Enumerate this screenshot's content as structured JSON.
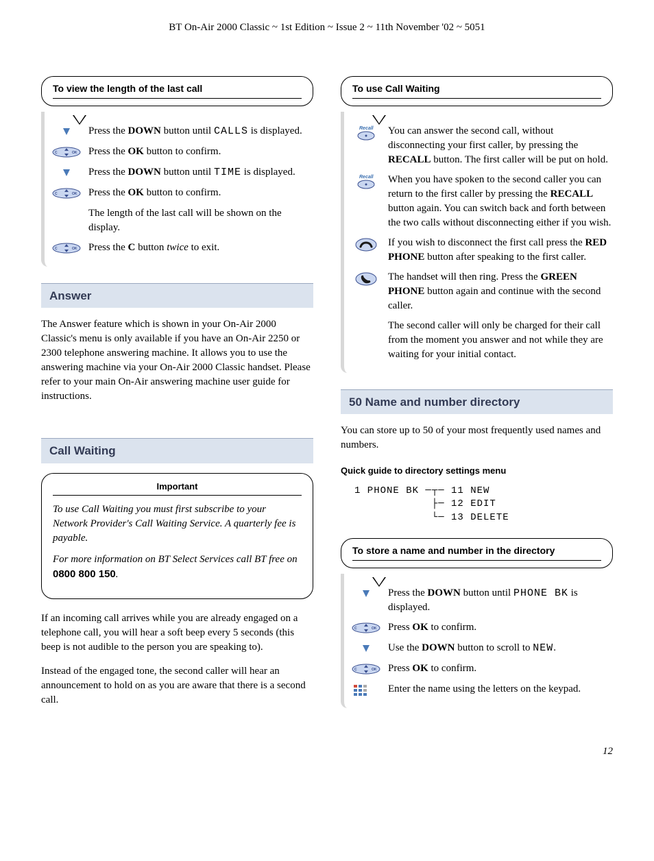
{
  "header": "BT On-Air 2000 Classic ~ 1st Edition ~ Issue 2 ~ 11th November '02 ~ 5051",
  "page_number": "12",
  "left": {
    "box1": {
      "title": "To view the length of the last call",
      "steps": [
        {
          "icon": "down",
          "pre": "Press the ",
          "bold": "DOWN",
          "mid": " button until ",
          "mono": "CALLS",
          "post": " is displayed."
        },
        {
          "icon": "ok",
          "pre": "Press the ",
          "bold": "OK",
          "mid": " button to confirm.",
          "mono": "",
          "post": ""
        },
        {
          "icon": "down",
          "pre": "Press the ",
          "bold": "DOWN",
          "mid": " button until ",
          "mono": "TIME",
          "post": " is displayed."
        },
        {
          "icon": "ok",
          "pre": "Press the ",
          "bold": "OK",
          "mid": " button to confirm.",
          "mono": "",
          "post": ""
        },
        {
          "icon": "none",
          "pre": "The length of the last call will be shown on the display.",
          "bold": "",
          "mid": "",
          "mono": "",
          "post": ""
        },
        {
          "icon": "ok",
          "pre": "Press the ",
          "bold": "C",
          "mid": " button ",
          "ital": "twice",
          "post": " to exit."
        }
      ]
    },
    "answer": {
      "heading": "Answer",
      "body": "The Answer feature which is shown in your On-Air 2000 Classic's menu is only available if you have an On-Air 2250 or 2300 telephone answering machine. It allows you to use the answering machine via your On-Air 2000 Classic handset. Please refer to your main On-Air answering machine user guide for instructions."
    },
    "cw": {
      "heading": "Call Waiting",
      "important_title": "Important",
      "important_p1": "To use Call Waiting you must first subscribe to your Network Provider's Call Waiting Service. A quarterly fee is payable.",
      "important_p2_pre": "For more information on BT Select Services call BT free on ",
      "important_phone": "0800 800 150",
      "important_p2_post": ".",
      "body1": "If an incoming call arrives while you are already engaged on a telephone call, you will hear a soft beep every 5 seconds (this beep is not audible to the person you are speaking to).",
      "body2": "Instead of the engaged tone, the second caller will hear an announcement to hold on as you are aware that there is a second call."
    }
  },
  "right": {
    "box1": {
      "title": "To use Call Waiting",
      "rows": [
        {
          "icon": "recall",
          "text_pre": "You can answer the second call, without disconnecting your first caller, by pressing the ",
          "bold": "RECALL",
          "text_post": " button. The first caller will be put on hold."
        },
        {
          "icon": "recall",
          "text_pre": "When you have spoken to the second caller you can return to the first caller by pressing the ",
          "bold": "RECALL",
          "text_post": " button again. You can switch back and forth between the two calls without disconnecting either if you wish."
        },
        {
          "icon": "red",
          "text_pre": "If you wish to disconnect the first call press the ",
          "bold": "RED PHONE",
          "text_post": " button after speaking to the first caller."
        },
        {
          "icon": "green",
          "text_pre": "The handset will then ring. Press the ",
          "bold": "GREEN PHONE",
          "text_post": " button again and continue with the second caller."
        },
        {
          "icon": "none",
          "text_pre": "The second caller will only be charged for their call from the moment you answer and not while they are waiting for your initial contact.",
          "bold": "",
          "text_post": ""
        }
      ]
    },
    "dir": {
      "heading": "50 Name and number directory",
      "intro": "You can store up to 50 of your most frequently used names and numbers.",
      "quick_title": "Quick guide to directory settings menu",
      "tree_root": "1 PHONE BK",
      "tree_items": [
        "11 NEW",
        "12 EDIT",
        "13 DELETE"
      ]
    },
    "box2": {
      "title": "To store a name and number in the directory",
      "steps": [
        {
          "icon": "down",
          "pre": "Press the ",
          "bold": "DOWN",
          "mid": " button until ",
          "mono": "PHONE BK",
          "post": " is displayed."
        },
        {
          "icon": "ok",
          "pre": "Press ",
          "bold": "OK",
          "mid": " to confirm.",
          "mono": "",
          "post": ""
        },
        {
          "icon": "down",
          "pre": "Use the ",
          "bold": "DOWN",
          "mid": " button to scroll to ",
          "mono": "NEW",
          "post": "."
        },
        {
          "icon": "ok",
          "pre": "Press ",
          "bold": "OK",
          "mid": " to confirm.",
          "mono": "",
          "post": ""
        },
        {
          "icon": "keypad",
          "pre": "Enter the name using the letters on the keypad.",
          "bold": "",
          "mid": "",
          "mono": "",
          "post": ""
        }
      ]
    }
  }
}
